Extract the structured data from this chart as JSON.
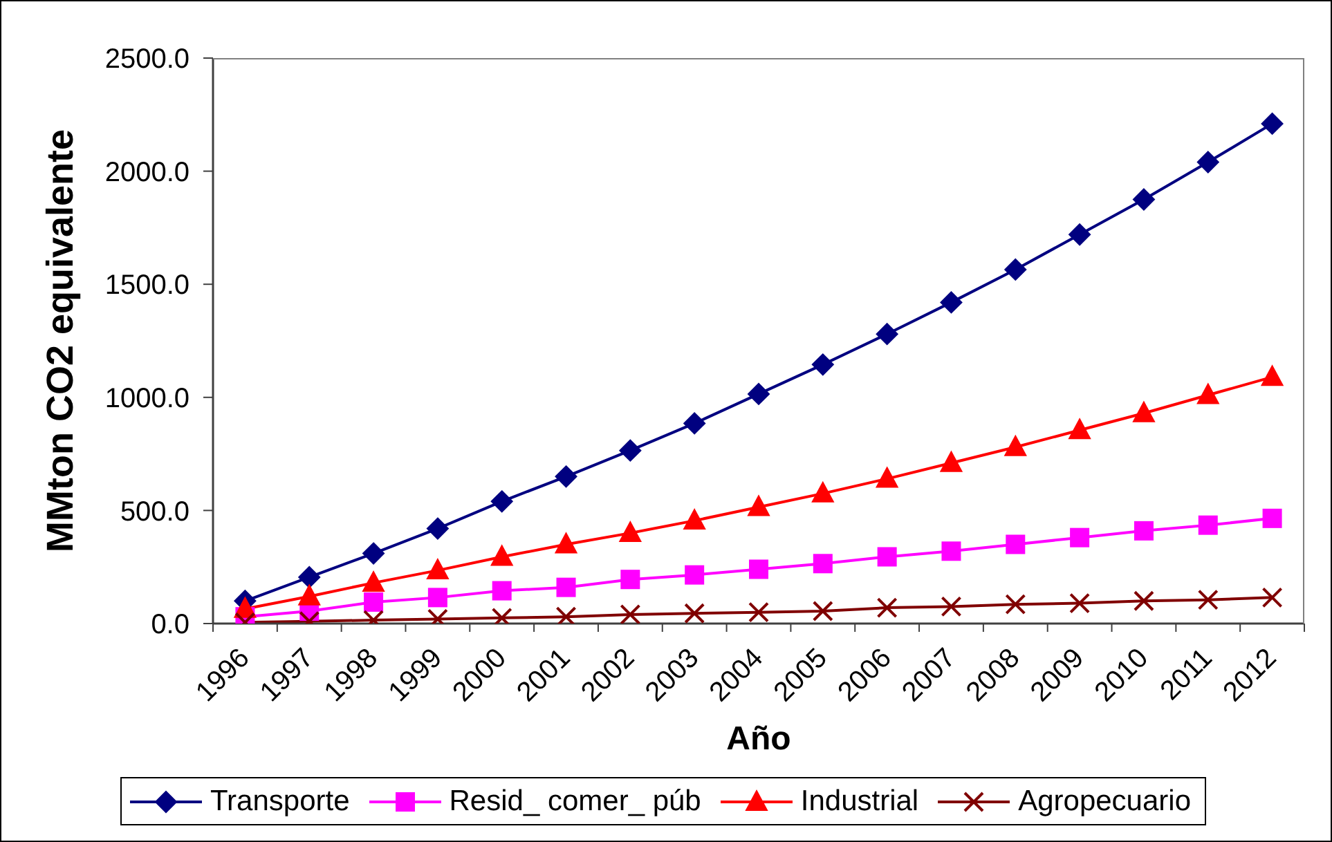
{
  "chart_data": {
    "type": "line",
    "xlabel": "Año",
    "ylabel": "MMton CO2 equivalente",
    "categories": [
      "1996",
      "1997",
      "1998",
      "1999",
      "2000",
      "2001",
      "2002",
      "2003",
      "2004",
      "2005",
      "2006",
      "2007",
      "2008",
      "2009",
      "2010",
      "2011",
      "2012"
    ],
    "series": [
      {
        "name": "Transporte",
        "color": "#000080",
        "marker": "diamond",
        "values": [
          100,
          205,
          310,
          420,
          540,
          650,
          765,
          885,
          1015,
          1145,
          1280,
          1420,
          1565,
          1720,
          1875,
          2040,
          2210
        ]
      },
      {
        "name": "Resid_ comer_ púb",
        "color": "#ff00ff",
        "marker": "square",
        "values": [
          30,
          55,
          95,
          115,
          145,
          160,
          195,
          215,
          240,
          265,
          295,
          320,
          350,
          380,
          410,
          435,
          465
        ]
      },
      {
        "name": "Industrial",
        "color": "#ff0000",
        "marker": "triangle",
        "values": [
          65,
          120,
          180,
          235,
          295,
          350,
          400,
          455,
          515,
          575,
          640,
          710,
          780,
          855,
          930,
          1010,
          1090
        ]
      },
      {
        "name": "Agropecuario",
        "color": "#800000",
        "marker": "cross",
        "values": [
          5,
          10,
          15,
          20,
          25,
          30,
          40,
          45,
          50,
          55,
          70,
          75,
          85,
          90,
          100,
          105,
          115
        ]
      }
    ],
    "ylim": [
      0,
      2500
    ],
    "yticks": [
      {
        "value": 0,
        "label": "0.0"
      },
      {
        "value": 500,
        "label": "500.0"
      },
      {
        "value": 1000,
        "label": "1000.0"
      },
      {
        "value": 1500,
        "label": "1500.0"
      },
      {
        "value": 2000,
        "label": "2000.0"
      },
      {
        "value": 2500,
        "label": "2500.0"
      }
    ],
    "grid": false,
    "legend": "bottom",
    "line_style": "solid"
  }
}
